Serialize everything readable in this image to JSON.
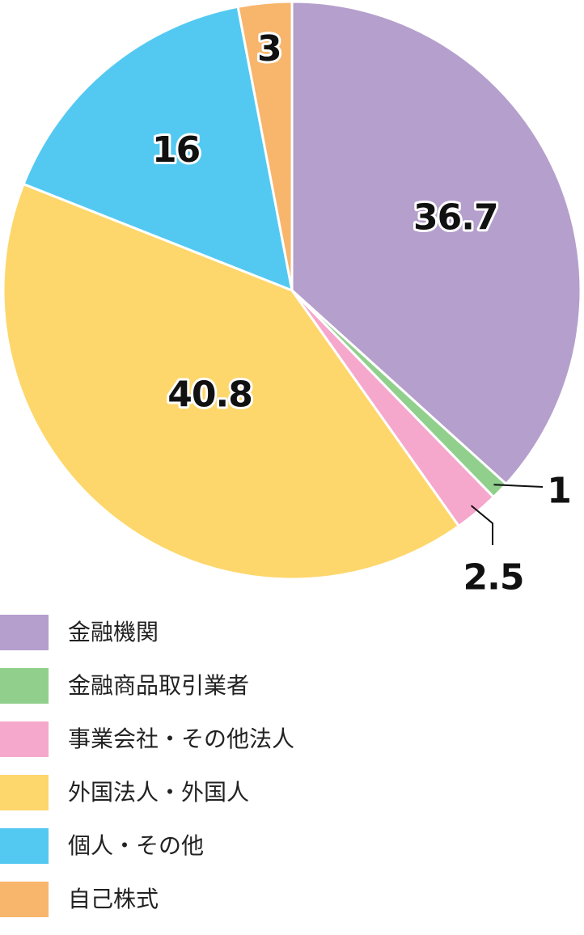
{
  "chart_data": {
    "type": "pie",
    "title": "",
    "start": "top",
    "direction": "clockwise",
    "slices": [
      {
        "label": "金融機関",
        "value": 36.7,
        "display": "36.7",
        "color": "#b59fcc",
        "label_position": "inside"
      },
      {
        "label": "金融商品取引業者",
        "value": 1,
        "display": "1",
        "color": "#90d08c",
        "label_position": "outside"
      },
      {
        "label": "事業会社・その他法人",
        "value": 2.5,
        "display": "2.5",
        "color": "#f5a8cc",
        "label_position": "outside"
      },
      {
        "label": "外国法人・外国人",
        "value": 40.8,
        "display": "40.8",
        "color": "#fdd76c",
        "label_position": "inside"
      },
      {
        "label": "個人・その他",
        "value": 16,
        "display": "16",
        "color": "#53c9f2",
        "label_position": "inside"
      },
      {
        "label": "自己株式",
        "value": 3,
        "display": "3",
        "color": "#f8b56c",
        "label_position": "inside"
      }
    ],
    "legend_placement": "bottom"
  }
}
